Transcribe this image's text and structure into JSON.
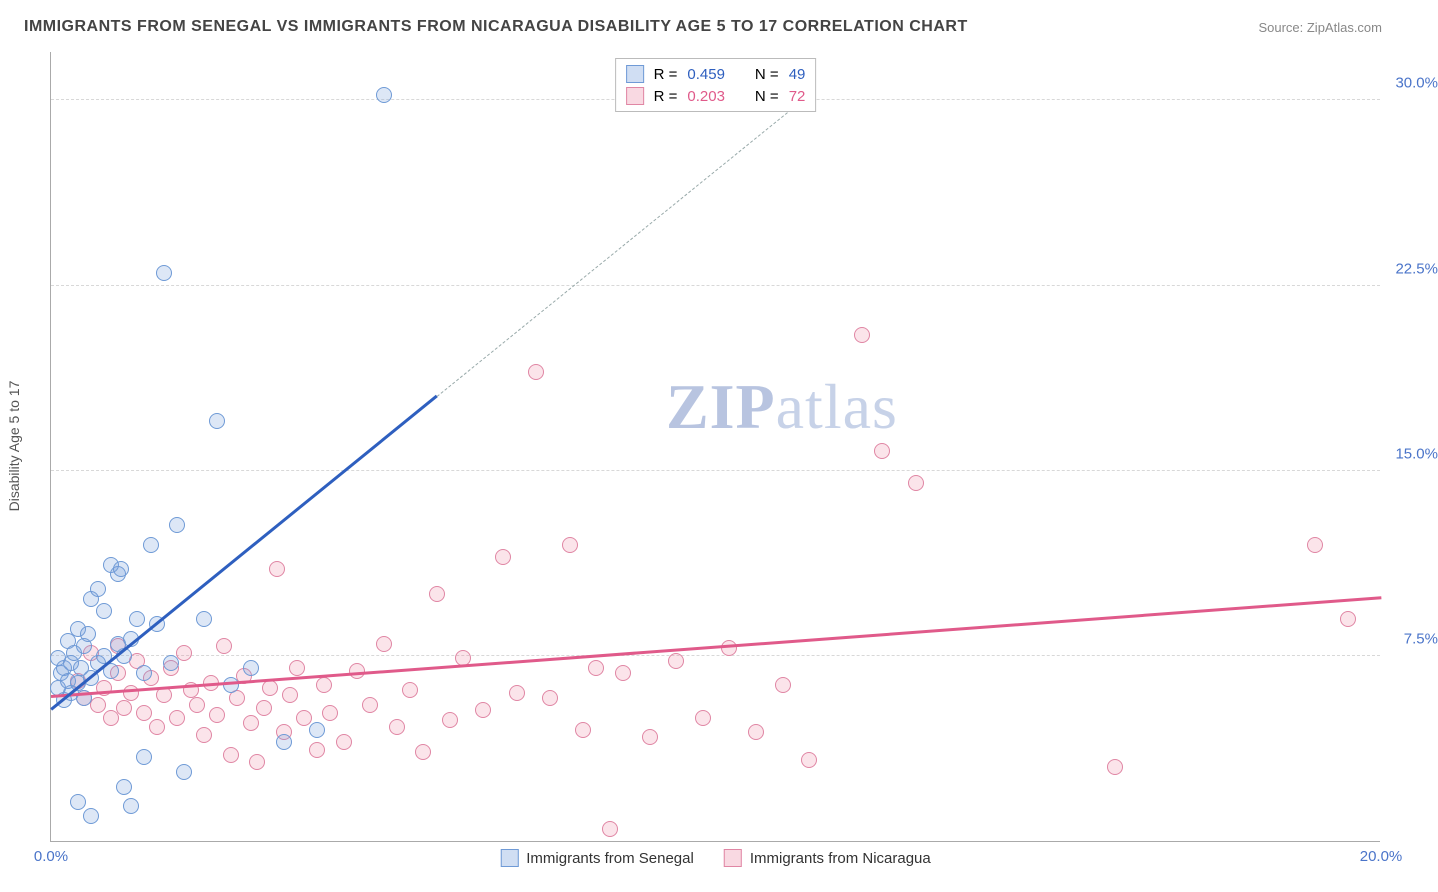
{
  "title": "IMMIGRANTS FROM SENEGAL VS IMMIGRANTS FROM NICARAGUA DISABILITY AGE 5 TO 17 CORRELATION CHART",
  "source_prefix": "Source: ",
  "source": "ZipAtlas.com",
  "ylabel": "Disability Age 5 to 17",
  "watermark_a": "ZIP",
  "watermark_b": "atlas",
  "chart": {
    "type": "scatter",
    "xlim": [
      0,
      20
    ],
    "ylim": [
      0,
      32
    ],
    "yticks": [
      7.5,
      15.0,
      22.5,
      30.0
    ],
    "ytick_labels": [
      "7.5%",
      "15.0%",
      "22.5%",
      "30.0%"
    ],
    "xticks": [
      0,
      20
    ],
    "xtick_labels": [
      "0.0%",
      "20.0%"
    ],
    "background_color": "#ffffff",
    "grid_color": "#d8d8d8",
    "series_a": {
      "name": "Immigrants from Senegal",
      "color_fill": "rgba(120,160,220,0.25)",
      "color_stroke": "#6f9ad6",
      "trend_color": "#2e5fbf",
      "R": 0.459,
      "N": 49,
      "trend": {
        "x1": 0,
        "y1": 5.3,
        "x2": 5.8,
        "y2": 18.0
      },
      "trend_dash": {
        "x1": 5.8,
        "y1": 18.0,
        "x2": 11.3,
        "y2": 30.0
      },
      "points": [
        [
          0.1,
          6.2
        ],
        [
          0.1,
          7.4
        ],
        [
          0.15,
          6.8
        ],
        [
          0.2,
          5.7
        ],
        [
          0.2,
          7.0
        ],
        [
          0.25,
          6.5
        ],
        [
          0.25,
          8.1
        ],
        [
          0.3,
          7.2
        ],
        [
          0.3,
          6.0
        ],
        [
          0.35,
          7.6
        ],
        [
          0.4,
          6.4
        ],
        [
          0.4,
          8.6
        ],
        [
          0.45,
          7.0
        ],
        [
          0.5,
          5.8
        ],
        [
          0.5,
          7.9
        ],
        [
          0.55,
          8.4
        ],
        [
          0.6,
          6.6
        ],
        [
          0.6,
          9.8
        ],
        [
          0.7,
          7.2
        ],
        [
          0.7,
          10.2
        ],
        [
          0.8,
          7.5
        ],
        [
          0.8,
          9.3
        ],
        [
          0.9,
          6.9
        ],
        [
          0.9,
          11.2
        ],
        [
          1.0,
          10.8
        ],
        [
          1.0,
          8.0
        ],
        [
          1.05,
          11.0
        ],
        [
          1.1,
          7.5
        ],
        [
          1.1,
          2.2
        ],
        [
          1.2,
          8.2
        ],
        [
          1.2,
          1.4
        ],
        [
          1.3,
          9.0
        ],
        [
          1.4,
          6.8
        ],
        [
          1.4,
          3.4
        ],
        [
          1.5,
          12.0
        ],
        [
          1.6,
          8.8
        ],
        [
          1.7,
          23.0
        ],
        [
          1.8,
          7.2
        ],
        [
          1.9,
          12.8
        ],
        [
          2.0,
          2.8
        ],
        [
          2.3,
          9.0
        ],
        [
          2.5,
          17.0
        ],
        [
          2.7,
          6.3
        ],
        [
          3.0,
          7.0
        ],
        [
          3.5,
          4.0
        ],
        [
          4.0,
          4.5
        ],
        [
          5.0,
          30.2
        ],
        [
          0.6,
          1.0
        ],
        [
          0.4,
          1.6
        ]
      ]
    },
    "series_b": {
      "name": "Immigrants from Nicaragua",
      "color_fill": "rgba(235,130,160,0.22)",
      "color_stroke": "#e086a4",
      "trend_color": "#e05a8a",
      "R": 0.203,
      "N": 72,
      "trend": {
        "x1": 0,
        "y1": 5.8,
        "x2": 20,
        "y2": 9.8
      },
      "points": [
        [
          0.4,
          6.5
        ],
        [
          0.5,
          5.8
        ],
        [
          0.6,
          7.6
        ],
        [
          0.7,
          5.5
        ],
        [
          0.8,
          6.2
        ],
        [
          0.9,
          5.0
        ],
        [
          1.0,
          6.8
        ],
        [
          1.0,
          7.9
        ],
        [
          1.1,
          5.4
        ],
        [
          1.2,
          6.0
        ],
        [
          1.3,
          7.3
        ],
        [
          1.4,
          5.2
        ],
        [
          1.5,
          6.6
        ],
        [
          1.6,
          4.6
        ],
        [
          1.7,
          5.9
        ],
        [
          1.8,
          7.0
        ],
        [
          1.9,
          5.0
        ],
        [
          2.0,
          7.6
        ],
        [
          2.1,
          6.1
        ],
        [
          2.2,
          5.5
        ],
        [
          2.3,
          4.3
        ],
        [
          2.4,
          6.4
        ],
        [
          2.5,
          5.1
        ],
        [
          2.6,
          7.9
        ],
        [
          2.7,
          3.5
        ],
        [
          2.8,
          5.8
        ],
        [
          2.9,
          6.7
        ],
        [
          3.0,
          4.8
        ],
        [
          3.1,
          3.2
        ],
        [
          3.2,
          5.4
        ],
        [
          3.3,
          6.2
        ],
        [
          3.4,
          11.0
        ],
        [
          3.5,
          4.4
        ],
        [
          3.6,
          5.9
        ],
        [
          3.7,
          7.0
        ],
        [
          3.8,
          5.0
        ],
        [
          4.0,
          3.7
        ],
        [
          4.1,
          6.3
        ],
        [
          4.2,
          5.2
        ],
        [
          4.4,
          4.0
        ],
        [
          4.6,
          6.9
        ],
        [
          4.8,
          5.5
        ],
        [
          5.0,
          8.0
        ],
        [
          5.2,
          4.6
        ],
        [
          5.4,
          6.1
        ],
        [
          5.6,
          3.6
        ],
        [
          5.8,
          10.0
        ],
        [
          6.0,
          4.9
        ],
        [
          6.2,
          7.4
        ],
        [
          6.5,
          5.3
        ],
        [
          6.8,
          11.5
        ],
        [
          7.0,
          6.0
        ],
        [
          7.3,
          19.0
        ],
        [
          7.5,
          5.8
        ],
        [
          7.8,
          12.0
        ],
        [
          8.0,
          4.5
        ],
        [
          8.2,
          7.0
        ],
        [
          8.4,
          0.5
        ],
        [
          8.6,
          6.8
        ],
        [
          9.0,
          4.2
        ],
        [
          9.4,
          7.3
        ],
        [
          9.8,
          5.0
        ],
        [
          10.2,
          7.8
        ],
        [
          10.6,
          4.4
        ],
        [
          11.0,
          6.3
        ],
        [
          11.4,
          3.3
        ],
        [
          12.2,
          20.5
        ],
        [
          12.5,
          15.8
        ],
        [
          13.0,
          14.5
        ],
        [
          16.0,
          3.0
        ],
        [
          19.0,
          12.0
        ],
        [
          19.5,
          9.0
        ]
      ]
    }
  },
  "stats_labels": {
    "R": "R =",
    "N": "N ="
  },
  "legend_a": "Immigrants from Senegal",
  "legend_b": "Immigrants from Nicaragua"
}
